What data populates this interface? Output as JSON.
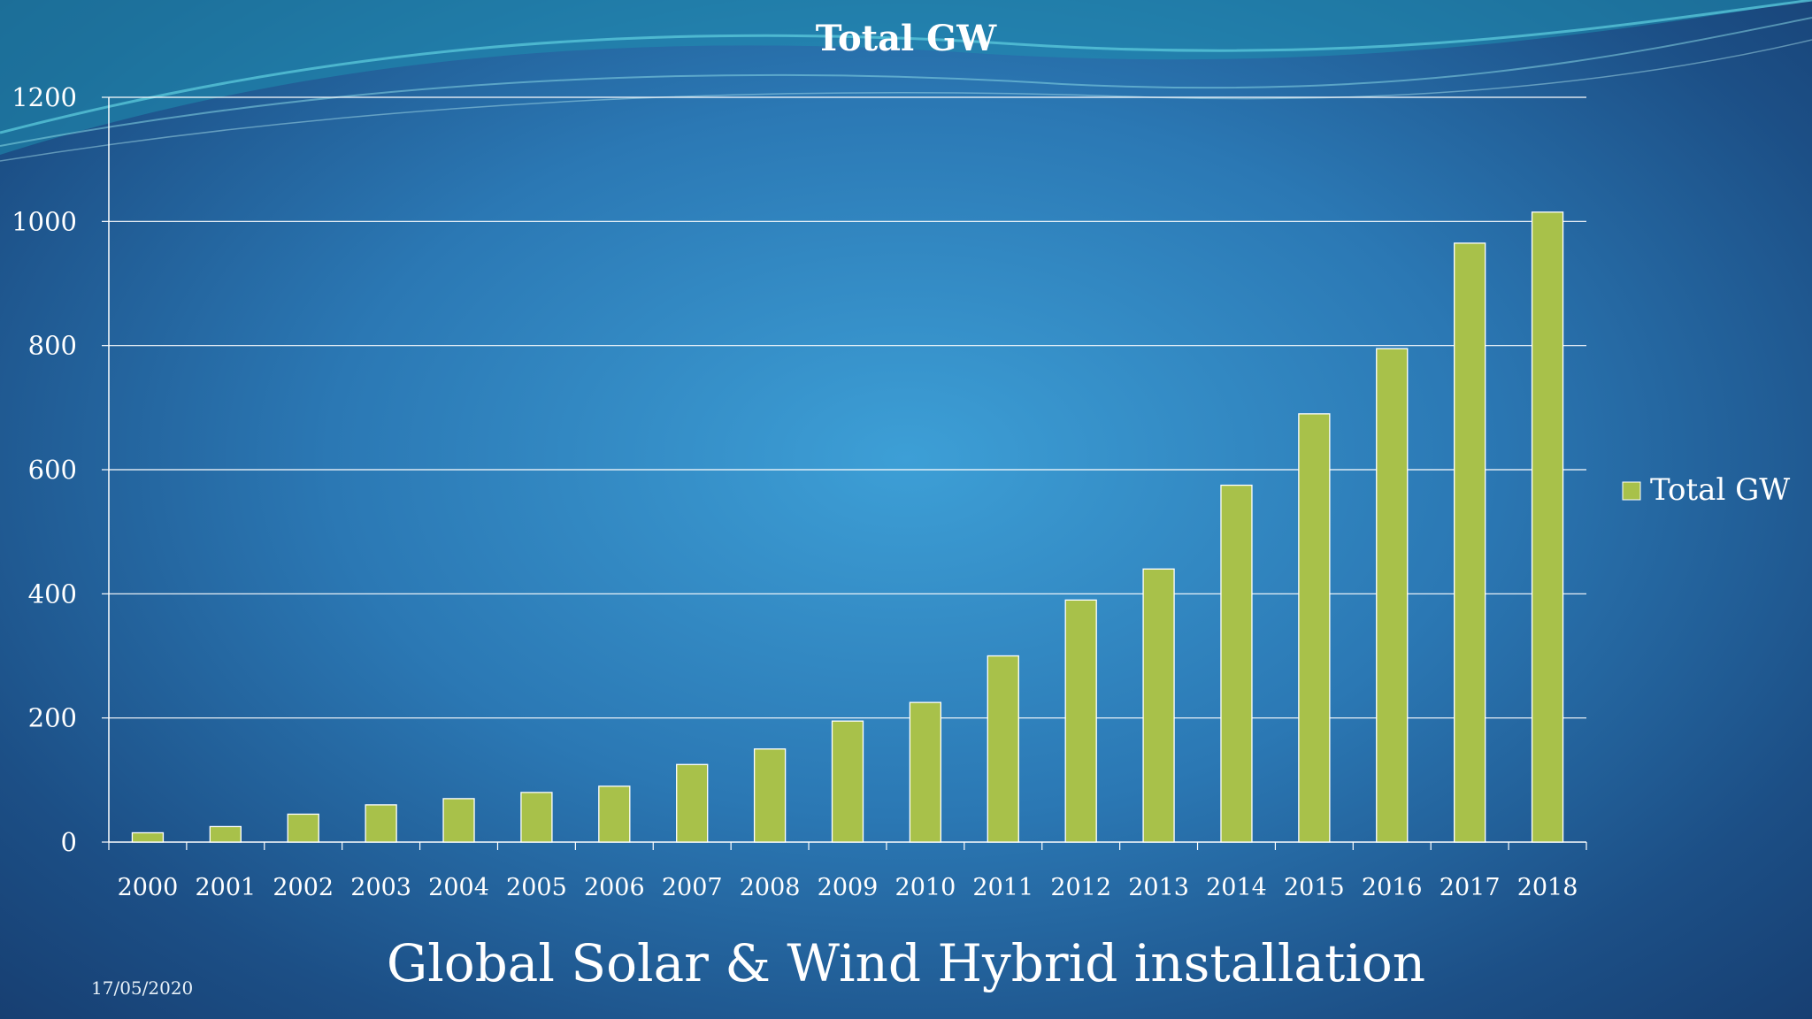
{
  "slide": {
    "title": "Global Solar & Wind Hybrid installation",
    "date": "17/05/2020"
  },
  "colors": {
    "bar_fill": "#a8c14a",
    "bar_stroke": "#ffffff",
    "grid": "#ffffff",
    "text": "#ffffff"
  },
  "chart_data": {
    "type": "bar",
    "title": "Total GW",
    "xlabel": "",
    "ylabel": "",
    "categories": [
      "2000",
      "2001",
      "2002",
      "2003",
      "2004",
      "2005",
      "2006",
      "2007",
      "2008",
      "2009",
      "2010",
      "2011",
      "2012",
      "2013",
      "2014",
      "2015",
      "2016",
      "2017",
      "2018"
    ],
    "series": [
      {
        "name": "Total GW",
        "values": [
          15,
          25,
          45,
          60,
          70,
          80,
          90,
          125,
          150,
          195,
          225,
          300,
          390,
          440,
          575,
          690,
          795,
          965,
          1015
        ]
      }
    ],
    "ylim": [
      0,
      1200
    ],
    "yticks": [
      "0",
      "200",
      "400",
      "600",
      "800",
      "1000",
      "1200"
    ],
    "grid": true,
    "legend": "right"
  }
}
